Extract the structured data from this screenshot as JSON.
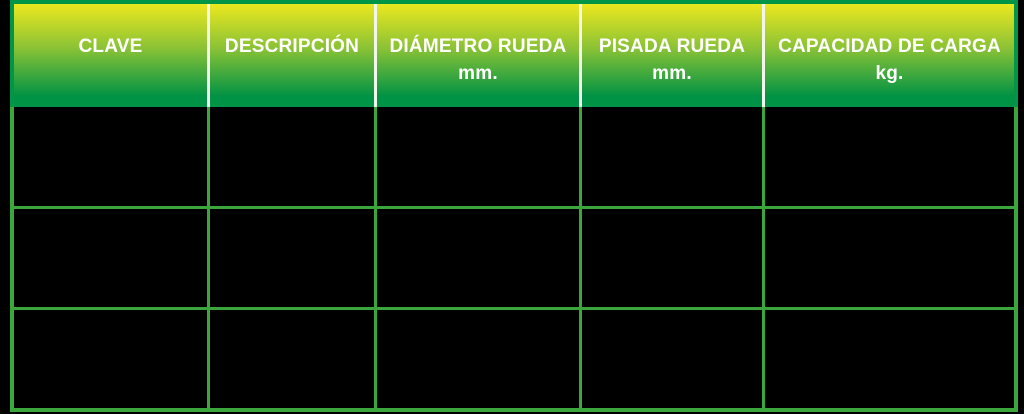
{
  "table": {
    "title_semantic": "product-spec-table",
    "columns": [
      {
        "title": "CLAVE",
        "unit": ""
      },
      {
        "title": "DESCRIPCIÓN",
        "unit": ""
      },
      {
        "title": "DIÁMETRO RUEDA",
        "unit": "mm."
      },
      {
        "title": "PISADA RUEDA",
        "unit": "mm."
      },
      {
        "title": "CAPACIDAD DE CARGA",
        "unit": "kg."
      }
    ],
    "rows": [
      [
        "",
        "",
        "",
        "",
        ""
      ],
      [
        "",
        "",
        "",
        "",
        ""
      ],
      [
        "",
        "",
        "",
        "",
        ""
      ]
    ],
    "colors": {
      "header_gradient_top": "#ece81f",
      "header_gradient_bottom": "#009245",
      "header_border": "#009547",
      "header_text": "#ffffff",
      "column_separator": "#f2f6ec",
      "grid_line": "#3aa63c",
      "cell_background": "#000000",
      "page_background": "#000000"
    }
  }
}
